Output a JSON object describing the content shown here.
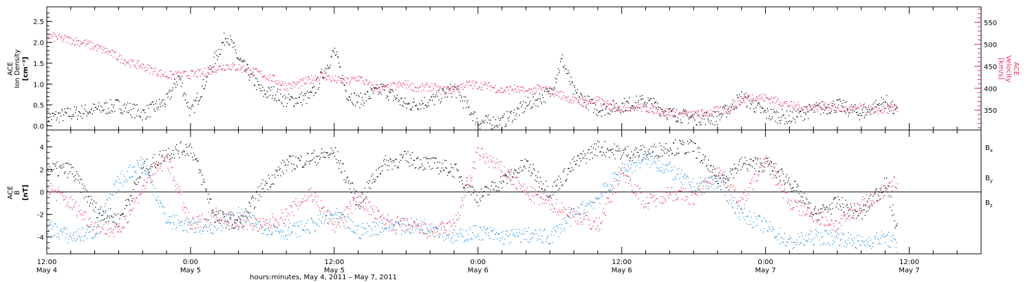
{
  "colors": {
    "black": "#000000",
    "pink": "#e5315a",
    "blue": "#1f8fe0",
    "axis": "#000000"
  },
  "xaxis": {
    "title": "hours:minutes,  May  4, 2011 – May  7, 2011",
    "ticks": [
      {
        "hour": 0,
        "time": "12:00",
        "day": "May 4"
      },
      {
        "hour": 12,
        "time": "0:00",
        "day": "May 5"
      },
      {
        "hour": 24,
        "time": "12:00",
        "day": "May 5"
      },
      {
        "hour": 36,
        "time": "0:00",
        "day": "May 6"
      },
      {
        "hour": 48,
        "time": "12:00",
        "day": "May 6"
      },
      {
        "hour": 60,
        "time": "0:00",
        "day": "May 7"
      },
      {
        "hour": 72,
        "time": "12:00",
        "day": "May 7"
      }
    ],
    "range_hours": [
      0,
      78
    ],
    "minor_step_hours": 2
  },
  "chart_data": [
    {
      "type": "scatter",
      "panel": "top",
      "left_axis": {
        "label_line1": "ACE",
        "label_line2": "Ion Density",
        "label_line3": "[cm⁻³]",
        "ylim": [
          -0.1,
          2.85
        ],
        "ticks": [
          "0.0",
          "0.5",
          "1.0",
          "1.5",
          "2.0",
          "2.5"
        ],
        "tick_values": [
          0.0,
          0.5,
          1.0,
          1.5,
          2.0,
          2.5
        ]
      },
      "right_axis": {
        "label_line1": "ACE",
        "label_line2": "Velocity",
        "label_line3": "[km/s]",
        "ylim": [
          305,
          585
        ],
        "ticks": [
          "350",
          "400",
          "450",
          "500",
          "550"
        ],
        "tick_values": [
          350,
          400,
          450,
          500,
          550
        ],
        "color": "#e5315a"
      },
      "series": [
        {
          "color": "#000000",
          "axis": "left",
          "x": [
            0,
            2,
            4,
            6,
            8,
            10,
            11,
            12,
            14,
            15,
            16,
            17,
            18,
            19,
            20,
            22,
            24,
            25,
            26,
            28,
            30,
            32,
            34,
            36,
            38,
            40,
            42,
            43,
            44,
            46,
            48,
            50,
            52,
            54,
            56,
            58,
            60,
            62,
            64,
            66,
            68,
            70,
            71
          ],
          "values": [
            0.2,
            0.3,
            0.4,
            0.5,
            0.3,
            0.6,
            1.2,
            0.3,
            1.6,
            2.2,
            1.6,
            1.2,
            0.8,
            0.8,
            0.6,
            0.7,
            1.8,
            0.8,
            0.6,
            0.9,
            0.5,
            0.6,
            0.9,
            0.1,
            0.1,
            0.5,
            0.8,
            1.6,
            0.8,
            0.4,
            0.5,
            0.6,
            0.3,
            0.2,
            0.2,
            0.7,
            0.3,
            0.2,
            0.4,
            0.5,
            0.3,
            0.6,
            0.3
          ]
        },
        {
          "color": "#e5315a",
          "axis": "right",
          "x": [
            0,
            1,
            2,
            3,
            4,
            5,
            6,
            7,
            8,
            9,
            10,
            11,
            12,
            13,
            14,
            15,
            16,
            17,
            18,
            19,
            20,
            21,
            22,
            23,
            24,
            25,
            26,
            27,
            28,
            29,
            30,
            31,
            32,
            33,
            34,
            35,
            36,
            37,
            38,
            39,
            40,
            41,
            42,
            43,
            44,
            45,
            46,
            47,
            48,
            49,
            50,
            51,
            52,
            53,
            54,
            55,
            56,
            57,
            58,
            59,
            60,
            61,
            62,
            63,
            64,
            65,
            66,
            67,
            68,
            69,
            70,
            71
          ],
          "values": [
            520,
            515,
            510,
            505,
            495,
            485,
            470,
            458,
            450,
            440,
            430,
            430,
            432,
            435,
            445,
            452,
            448,
            440,
            432,
            420,
            405,
            410,
            420,
            430,
            420,
            415,
            425,
            405,
            398,
            405,
            410,
            400,
            405,
            395,
            400,
            410,
            408,
            405,
            395,
            400,
            392,
            400,
            395,
            385,
            372,
            368,
            372,
            360,
            355,
            360,
            355,
            352,
            345,
            342,
            340,
            345,
            350,
            355,
            375,
            382,
            378,
            372,
            362,
            358,
            355,
            362,
            355,
            352,
            357,
            350,
            352,
            356
          ]
        }
      ]
    },
    {
      "type": "scatter",
      "panel": "bottom",
      "left_axis": {
        "label_line1": "ACE",
        "label_line2": "B",
        "label_line3": "[nT]",
        "ylim": [
          -5.5,
          5.5
        ],
        "ticks": [
          "4",
          "2",
          "0",
          "-2",
          "-4"
        ],
        "tick_values": [
          4,
          2,
          0,
          -2,
          -4
        ]
      },
      "zero_line": true,
      "series": [
        {
          "name": "B",
          "sub": "x",
          "color": "#000000",
          "x": [
            0,
            2,
            4,
            6,
            8,
            10,
            12,
            14,
            16,
            18,
            20,
            22,
            24,
            26,
            28,
            30,
            32,
            34,
            36,
            38,
            40,
            42,
            44,
            46,
            48,
            50,
            52,
            54,
            56,
            58,
            60,
            62,
            64,
            66,
            68,
            70,
            71
          ],
          "values": [
            2,
            2,
            -1.5,
            -2.5,
            2,
            3.5,
            4,
            -2,
            -3,
            0.5,
            2.5,
            3,
            3.5,
            -1,
            2.5,
            3,
            2.5,
            2,
            -0.5,
            1,
            2.5,
            0,
            2.5,
            4,
            3.5,
            3.5,
            4,
            4,
            1,
            2.5,
            2.5,
            1,
            -2,
            -1,
            -2,
            1,
            -3.5
          ]
        },
        {
          "name": "B",
          "sub": "y",
          "color": "#1f8fe0",
          "x": [
            0,
            2,
            4,
            6,
            8,
            10,
            12,
            14,
            16,
            18,
            20,
            22,
            24,
            26,
            28,
            30,
            32,
            34,
            36,
            38,
            40,
            42,
            44,
            46,
            48,
            50,
            52,
            54,
            56,
            58,
            60,
            62,
            64,
            66,
            68,
            70,
            71
          ],
          "values": [
            -3,
            -4,
            -3.5,
            1,
            2.8,
            -2.5,
            -3,
            -3,
            -2,
            -3,
            -3.5,
            -3,
            -2,
            -3.5,
            -3,
            -3,
            -3,
            -4,
            -3.5,
            -4,
            -3.8,
            -4,
            -2,
            -0.5,
            2,
            3,
            2,
            0.5,
            1,
            -2,
            -3,
            -4.5,
            -4,
            -4,
            -4.5,
            -4,
            -4.8
          ]
        },
        {
          "name": "B",
          "sub": "z",
          "color": "#e5315a",
          "x": [
            0,
            2,
            4,
            6,
            8,
            10,
            12,
            14,
            16,
            18,
            20,
            22,
            24,
            26,
            28,
            30,
            32,
            34,
            36,
            38,
            40,
            42,
            44,
            46,
            48,
            50,
            52,
            54,
            56,
            58,
            60,
            62,
            64,
            66,
            68,
            70,
            71
          ],
          "values": [
            0.5,
            -1,
            -3,
            -3.5,
            0.5,
            3,
            -3,
            -2,
            -2.5,
            -3,
            -2,
            0,
            -3,
            -0.5,
            -2.5,
            -3,
            -3.5,
            -3,
            3.5,
            2,
            0,
            -1,
            -2,
            -3,
            2,
            -1,
            0,
            -0.5,
            2,
            -1,
            3,
            -1,
            -2,
            -3,
            -1,
            0,
            1
          ]
        }
      ]
    }
  ]
}
